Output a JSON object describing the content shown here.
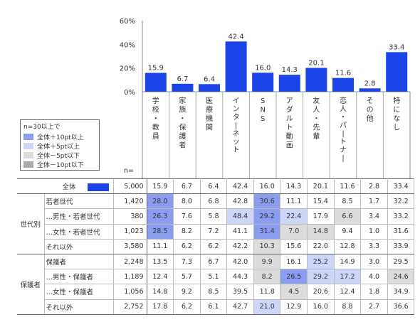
{
  "chart_data": {
    "type": "bar",
    "ylim": [
      0,
      60
    ],
    "yticks": [
      "0%",
      "20%",
      "40%",
      "60%"
    ],
    "categories": [
      "学校・教員",
      "家族・保護者",
      "医療機関",
      "インターネット",
      "SNS",
      "アダルト動画",
      "友人・先輩",
      "恋人・パートナー",
      "その他",
      "特になし"
    ],
    "values": [
      15.9,
      6.7,
      6.4,
      42.4,
      16.0,
      14.3,
      20.1,
      11.6,
      2.8,
      33.4
    ],
    "bar_color": "#1a44e8"
  },
  "n_label": "n=",
  "legend": {
    "title": "n=30以上で",
    "items": [
      {
        "label": "全体＋10pt以上",
        "color": "#8a9df0"
      },
      {
        "label": "全体＋5pt以上",
        "color": "#cdd5f8"
      },
      {
        "label": "全体－5pt以下",
        "color": "#dcdcdc"
      },
      {
        "label": "全体－10pt以下",
        "color": "#a9a9a9"
      }
    ]
  },
  "colors": {
    "plus10": "#8a9df0",
    "plus5": "#cdd5f8",
    "minus5": "#dcdcdc",
    "minus10": "#a9a9a9"
  },
  "table": {
    "total": {
      "label": "全体",
      "n": "5,000",
      "values": [
        "15.9",
        "6.7",
        "6.4",
        "42.4",
        "16.0",
        "14.3",
        "20.1",
        "11.6",
        "2.8",
        "33.4"
      ]
    },
    "groups": [
      {
        "name": "世代別",
        "rows": [
          {
            "label": "若者世代",
            "n": "1,420",
            "values": [
              "28.0",
              "8.0",
              "6.8",
              "42.8",
              "30.6",
              "11.1",
              "15.4",
              "8.5",
              "1.7",
              "32.2"
            ],
            "hl": [
              "plus10",
              "",
              "",
              "",
              "plus10",
              "",
              "",
              "",
              "",
              ""
            ]
          },
          {
            "label": "…男性・若者世代",
            "n": "380",
            "values": [
              "26.3",
              "7.6",
              "5.8",
              "48.4",
              "29.2",
              "22.4",
              "17.9",
              "6.6",
              "3.4",
              "33.2"
            ],
            "hl": [
              "plus10",
              "",
              "",
              "plus5",
              "plus10",
              "plus5",
              "",
              "minus5",
              "",
              ""
            ]
          },
          {
            "label": "…女性・若者世代",
            "n": "1,023",
            "values": [
              "28.5",
              "8.2",
              "7.2",
              "41.1",
              "31.4",
              "7.0",
              "14.8",
              "9.4",
              "1.0",
              "31.6"
            ],
            "hl": [
              "plus10",
              "",
              "",
              "",
              "plus10",
              "minus5",
              "minus5",
              "",
              "",
              ""
            ]
          },
          {
            "label": "それ以外",
            "n": "3,580",
            "values": [
              "11.1",
              "6.2",
              "6.2",
              "42.2",
              "10.3",
              "15.6",
              "22.0",
              "12.8",
              "3.3",
              "33.9"
            ],
            "hl": [
              "",
              "",
              "",
              "",
              "minus5",
              "",
              "",
              "",
              "",
              ""
            ]
          }
        ]
      },
      {
        "name": "保護者",
        "rows": [
          {
            "label": "保護者",
            "n": "2,248",
            "values": [
              "13.5",
              "7.3",
              "6.7",
              "42.0",
              "9.9",
              "16.1",
              "25.2",
              "14.9",
              "3.0",
              "29.5"
            ],
            "hl": [
              "",
              "",
              "",
              "",
              "minus5",
              "",
              "plus5",
              "",
              "",
              ""
            ]
          },
          {
            "label": "…男性・保護者",
            "n": "1,189",
            "values": [
              "12.4",
              "5.7",
              "5.1",
              "44.3",
              "8.2",
              "26.5",
              "29.2",
              "17.2",
              "4.0",
              "24.6"
            ],
            "hl": [
              "",
              "",
              "",
              "",
              "minus5",
              "plus10",
              "plus5",
              "plus5",
              "",
              "minus5"
            ]
          },
          {
            "label": "…女性・保護者",
            "n": "1,056",
            "values": [
              "14.8",
              "9.2",
              "8.5",
              "39.5",
              "11.8",
              "4.5",
              "20.6",
              "12.4",
              "1.8",
              "34.9"
            ],
            "hl": [
              "",
              "",
              "",
              "",
              "",
              "minus5",
              "",
              "",
              "",
              ""
            ]
          },
          {
            "label": "それ以外",
            "n": "2,752",
            "values": [
              "17.8",
              "6.2",
              "6.1",
              "42.7",
              "21.0",
              "12.9",
              "16.0",
              "8.8",
              "2.7",
              "36.6"
            ],
            "hl": [
              "",
              "",
              "",
              "",
              "plus5",
              "",
              "",
              "",
              "",
              ""
            ]
          }
        ]
      }
    ]
  }
}
